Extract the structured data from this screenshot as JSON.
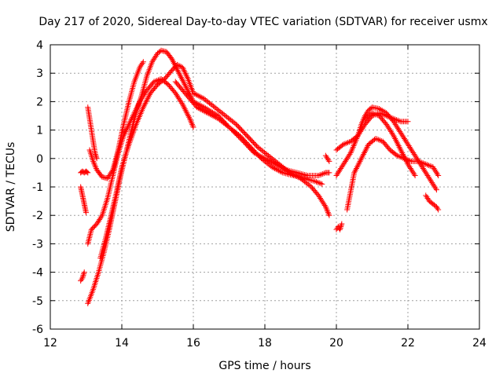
{
  "chart_data": {
    "type": "scatter",
    "title": "Day 217 of 2020, Sidereal Day-to-day VTEC variation (SDTVAR) for receiver usmx",
    "xlabel": "GPS time / hours",
    "ylabel": "SDTVAR / TECUs",
    "xlim": [
      12,
      24
    ],
    "ylim": [
      -6,
      4
    ],
    "xticks": [
      "12",
      "14",
      "16",
      "18",
      "20",
      "22",
      "24"
    ],
    "yticks": [
      "-6",
      "-5",
      "-4",
      "-3",
      "-2",
      "-1",
      "0",
      "1",
      "2",
      "3",
      "4"
    ],
    "grid": true,
    "marker": "+",
    "color": "#ff0000",
    "series": [
      {
        "name": "segment-1",
        "x": [
          12.85,
          12.9,
          12.95,
          13.0
        ],
        "y": [
          -1.0,
          -1.3,
          -1.6,
          -1.9
        ]
      },
      {
        "name": "segment-2",
        "x": [
          12.85,
          12.9,
          12.95,
          13.0,
          13.05
        ],
        "y": [
          -0.5,
          -0.45,
          -0.5,
          -0.45,
          -0.5
        ]
      },
      {
        "name": "segment-3",
        "x": [
          12.85,
          12.9,
          12.95
        ],
        "y": [
          -4.3,
          -4.2,
          -4.0
        ]
      },
      {
        "name": "segment-4",
        "x": [
          13.05,
          13.1,
          13.15,
          13.2,
          13.25,
          13.3
        ],
        "y": [
          1.8,
          1.4,
          1.0,
          0.6,
          0.2,
          0.0
        ]
      },
      {
        "name": "segment-5",
        "x": [
          13.1,
          13.2,
          13.3,
          13.45,
          13.6,
          13.75,
          13.9,
          14.05,
          14.2,
          14.35,
          14.5,
          14.6
        ],
        "y": [
          0.3,
          -0.1,
          -0.4,
          -0.65,
          -0.7,
          -0.4,
          0.3,
          1.2,
          2.0,
          2.7,
          3.2,
          3.4
        ]
      },
      {
        "name": "segment-6",
        "x": [
          13.05,
          13.15,
          13.3,
          13.45,
          13.6,
          13.75,
          13.9,
          14.05,
          14.2,
          14.35,
          14.5,
          14.7,
          14.9,
          15.1,
          15.3,
          15.5,
          15.7,
          15.9,
          16.0
        ],
        "y": [
          -3.0,
          -2.5,
          -2.3,
          -2.0,
          -1.4,
          -0.6,
          0.2,
          0.8,
          1.2,
          1.6,
          2.0,
          2.4,
          2.7,
          2.8,
          2.6,
          2.3,
          1.9,
          1.4,
          1.1
        ]
      },
      {
        "name": "segment-7",
        "x": [
          13.05,
          13.2,
          13.35,
          13.5,
          13.65,
          13.8,
          13.95,
          14.1,
          14.25,
          14.4,
          14.55,
          14.7,
          14.85,
          15.0,
          15.1,
          15.25,
          15.4,
          15.6,
          15.8,
          16.0,
          16.3,
          16.7,
          17.0,
          17.4,
          17.7,
          18.0,
          18.3,
          18.6,
          18.9,
          19.2,
          19.5,
          19.7,
          19.8
        ],
        "y": [
          -5.1,
          -4.6,
          -4.0,
          -3.3,
          -2.5,
          -1.6,
          -0.7,
          0.1,
          0.9,
          1.6,
          2.2,
          2.9,
          3.4,
          3.7,
          3.8,
          3.75,
          3.5,
          3.0,
          2.5,
          2.0,
          1.8,
          1.5,
          1.1,
          0.6,
          0.2,
          0.0,
          -0.2,
          -0.4,
          -0.5,
          -0.6,
          -0.6,
          -0.5,
          -0.5
        ]
      },
      {
        "name": "segment-8",
        "x": [
          13.4,
          13.55,
          13.7,
          13.85,
          14.0,
          14.2,
          14.4,
          14.6,
          14.8,
          15.0,
          15.2,
          15.4,
          15.55,
          15.7,
          15.85,
          16.0,
          16.3,
          16.6,
          16.9,
          17.2,
          17.5,
          17.8,
          18.1,
          18.4,
          18.7,
          19.0,
          19.3,
          19.5,
          19.7,
          19.8
        ],
        "y": [
          -3.5,
          -2.8,
          -2.0,
          -1.2,
          -0.3,
          0.5,
          1.2,
          1.8,
          2.3,
          2.6,
          2.8,
          3.1,
          3.3,
          3.2,
          2.8,
          2.3,
          2.1,
          1.8,
          1.5,
          1.2,
          0.8,
          0.4,
          0.1,
          -0.2,
          -0.5,
          -0.7,
          -1.0,
          -1.3,
          -1.7,
          -2.0
        ]
      },
      {
        "name": "segment-9",
        "x": [
          15.5,
          15.7,
          15.9,
          16.1,
          16.4,
          16.7,
          17.0,
          17.3,
          17.6,
          17.9,
          18.2,
          18.5,
          18.8,
          19.1,
          19.4,
          19.6
        ],
        "y": [
          2.7,
          2.4,
          2.1,
          1.8,
          1.6,
          1.4,
          1.1,
          0.8,
          0.4,
          0.0,
          -0.3,
          -0.5,
          -0.6,
          -0.7,
          -0.8,
          -0.9
        ]
      },
      {
        "name": "segment-10",
        "x": [
          19.7,
          19.75,
          19.8
        ],
        "y": [
          0.1,
          0.0,
          -0.1
        ]
      },
      {
        "name": "segment-11",
        "x": [
          20.0,
          20.05,
          20.1,
          20.15
        ],
        "y": [
          -2.5,
          -2.4,
          -2.5,
          -2.3
        ]
      },
      {
        "name": "segment-12",
        "x": [
          20.0,
          20.1,
          20.2,
          20.3,
          20.4,
          20.5,
          20.6,
          20.7,
          20.8,
          20.9,
          21.0,
          21.2,
          21.4,
          21.6,
          21.8,
          22.0,
          22.2,
          22.4,
          22.6,
          22.8
        ],
        "y": [
          -0.6,
          -0.4,
          -0.2,
          0.0,
          0.2,
          0.5,
          0.8,
          1.2,
          1.5,
          1.7,
          1.8,
          1.75,
          1.6,
          1.3,
          0.9,
          0.5,
          0.1,
          -0.3,
          -0.7,
          -1.1
        ]
      },
      {
        "name": "segment-13",
        "x": [
          20.0,
          20.2,
          20.4,
          20.6,
          20.8,
          21.0,
          21.2,
          21.4,
          21.6,
          21.8,
          22.0
        ],
        "y": [
          0.3,
          0.5,
          0.6,
          0.8,
          1.2,
          1.5,
          1.6,
          1.5,
          1.4,
          1.3,
          1.3
        ]
      },
      {
        "name": "segment-14",
        "x": [
          20.3,
          20.5,
          20.7,
          20.9,
          21.1,
          21.3,
          21.5,
          21.7,
          21.9,
          22.1,
          22.3,
          22.5,
          22.7,
          22.85
        ],
        "y": [
          -1.8,
          -0.5,
          0.0,
          0.5,
          0.7,
          0.6,
          0.3,
          0.1,
          0.0,
          -0.1,
          -0.1,
          -0.2,
          -0.3,
          -0.6
        ]
      },
      {
        "name": "segment-15",
        "x": [
          20.8,
          21.0,
          21.2,
          21.4,
          21.6,
          21.8,
          22.0,
          22.2
        ],
        "y": [
          1.4,
          1.6,
          1.5,
          1.2,
          0.8,
          0.3,
          -0.2,
          -0.6
        ]
      },
      {
        "name": "segment-16",
        "x": [
          22.5,
          22.6,
          22.7,
          22.8,
          22.85
        ],
        "y": [
          -1.3,
          -1.5,
          -1.6,
          -1.7,
          -1.8
        ]
      }
    ]
  }
}
